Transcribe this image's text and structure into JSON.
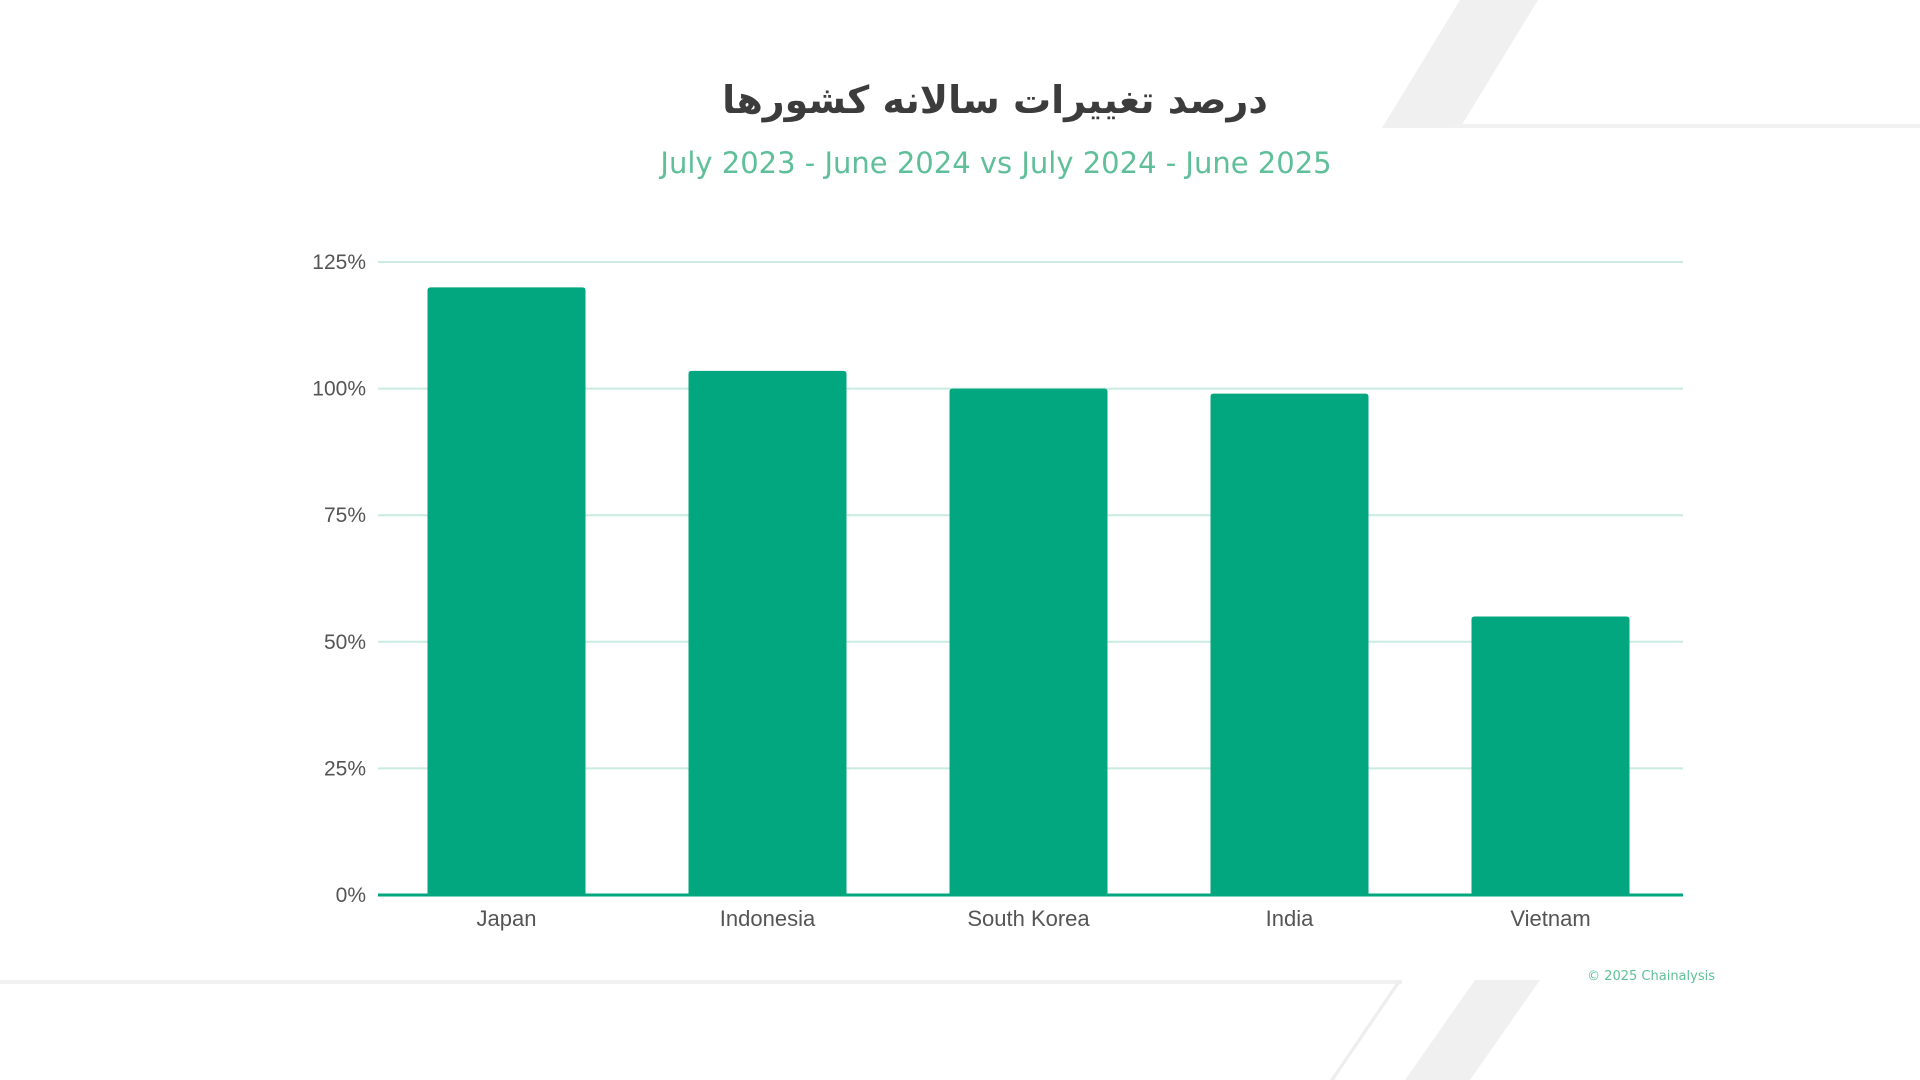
{
  "title": "درصد تغییرات سالانه کشورها",
  "subtitle": "July 2023 - June 2024 vs July 2024 - June 2025",
  "footer": "© 2025 Chainalysis",
  "colors": {
    "bar": "#03a77f",
    "grid": "#c9ebe0",
    "baseline": "#03a77f",
    "subtitle": "#5fbf98",
    "title": "#3c3c3c"
  },
  "chart_data": {
    "type": "bar",
    "categories": [
      "Japan",
      "Indonesia",
      "South Korea",
      "India",
      "Vietnam"
    ],
    "values": [
      120,
      103.5,
      100,
      99,
      55
    ],
    "title": "درصد تغییرات سالانه کشورها",
    "subtitle": "July 2023 - June 2024 vs July 2024 - June 2025",
    "xlabel": "",
    "ylabel": "",
    "ylim": [
      0,
      125
    ],
    "yticks": [
      0,
      25,
      50,
      75,
      100,
      125
    ],
    "ytick_labels": [
      "0%",
      "25%",
      "50%",
      "75%",
      "100%",
      "125%"
    ],
    "grid": true,
    "legend": "none"
  }
}
